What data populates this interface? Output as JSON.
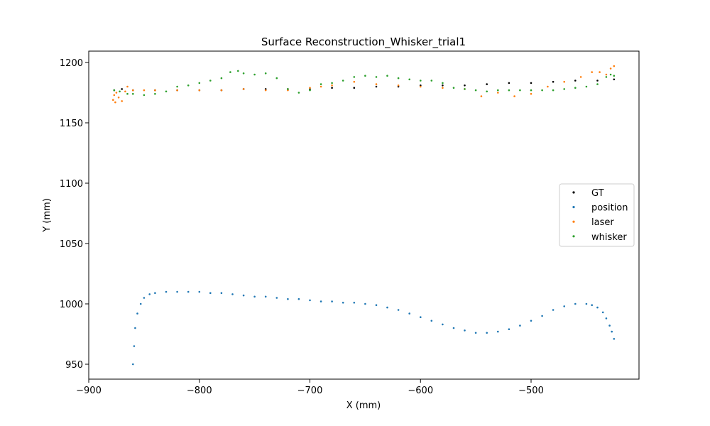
{
  "chart_data": {
    "type": "scatter",
    "title": "Surface Reconstruction_Whisker_trial1",
    "xlabel": "X (mm)",
    "ylabel": "Y (mm)",
    "xlim": [
      -900,
      -915
    ],
    "xlim_note": "",
    "x_range": [
      -903,
      -883
    ],
    "y_range": [
      937,
      1210
    ],
    "x_ticks": [
      -900,
      -800,
      -700,
      -600,
      -500
    ],
    "x_tick_labels": [
      "−900",
      "−800",
      "−700",
      "−600",
      "−500"
    ],
    "y_ticks": [
      950,
      1000,
      1050,
      1100,
      1150,
      1200
    ],
    "y_tick_labels": [
      "950",
      "1000",
      "1050",
      "1100",
      "1150",
      "1200"
    ],
    "grid": false,
    "legend_position": "center-right",
    "series": [
      {
        "name": "GT",
        "color": "#000000",
        "x": [
          -877,
          -870,
          -860,
          -840,
          -820,
          -800,
          -780,
          -760,
          -740,
          -720,
          -700,
          -680,
          -660,
          -640,
          -620,
          -600,
          -580,
          -560,
          -540,
          -520,
          -500,
          -480,
          -460,
          -440,
          -425
        ],
        "y": [
          1177,
          1178,
          1177,
          1177,
          1177,
          1177,
          1177,
          1178,
          1178,
          1178,
          1178,
          1179,
          1179,
          1180,
          1180,
          1181,
          1181,
          1181,
          1182,
          1183,
          1183,
          1184,
          1185,
          1185,
          1186
        ]
      },
      {
        "name": "position",
        "color": "#1f77b4",
        "x": [
          -860,
          -859,
          -858,
          -856,
          -853,
          -850,
          -845,
          -840,
          -830,
          -820,
          -810,
          -800,
          -790,
          -780,
          -770,
          -760,
          -750,
          -740,
          -730,
          -720,
          -710,
          -700,
          -690,
          -680,
          -670,
          -660,
          -650,
          -640,
          -630,
          -620,
          -610,
          -600,
          -590,
          -580,
          -570,
          -560,
          -550,
          -540,
          -530,
          -520,
          -510,
          -500,
          -490,
          -480,
          -470,
          -460,
          -450,
          -445,
          -440,
          -435,
          -432,
          -429,
          -427,
          -425
        ],
        "y": [
          950,
          965,
          980,
          992,
          1000,
          1005,
          1008,
          1009,
          1010,
          1010,
          1010,
          1010,
          1009,
          1009,
          1008,
          1007,
          1006,
          1006,
          1005,
          1004,
          1004,
          1003,
          1002,
          1002,
          1001,
          1001,
          1000,
          999,
          997,
          995,
          992,
          989,
          986,
          983,
          980,
          978,
          976,
          976,
          977,
          979,
          982,
          986,
          990,
          995,
          998,
          1000,
          1000,
          999,
          997,
          993,
          988,
          982,
          977,
          971
        ]
      },
      {
        "name": "laser",
        "color": "#ff7f0e",
        "x": [
          -878,
          -877,
          -876,
          -875,
          -873,
          -870,
          -867,
          -865,
          -860,
          -850,
          -840,
          -820,
          -800,
          -780,
          -760,
          -740,
          -720,
          -700,
          -690,
          -680,
          -660,
          -640,
          -620,
          -600,
          -580,
          -560,
          -545,
          -530,
          -515,
          -500,
          -485,
          -470,
          -455,
          -445,
          -438,
          -432,
          -428,
          -425
        ],
        "y": [
          1169,
          1173,
          1167,
          1175,
          1171,
          1168,
          1176,
          1180,
          1177,
          1177,
          1177,
          1177,
          1177,
          1177,
          1178,
          1177,
          1177,
          1179,
          1180,
          1181,
          1184,
          1182,
          1181,
          1180,
          1179,
          1178,
          1172,
          1175,
          1172,
          1174,
          1180,
          1184,
          1188,
          1192,
          1192,
          1190,
          1195,
          1197
        ]
      },
      {
        "name": "whisker",
        "color": "#2ca02c",
        "x": [
          -877,
          -872,
          -865,
          -860,
          -850,
          -840,
          -830,
          -820,
          -810,
          -800,
          -790,
          -780,
          -772,
          -765,
          -760,
          -750,
          -740,
          -730,
          -720,
          -710,
          -700,
          -690,
          -680,
          -670,
          -660,
          -650,
          -640,
          -630,
          -620,
          -610,
          -600,
          -590,
          -580,
          -570,
          -560,
          -550,
          -540,
          -530,
          -520,
          -510,
          -500,
          -490,
          -480,
          -470,
          -460,
          -450,
          -440,
          -432,
          -428,
          -425
        ],
        "y": [
          1177,
          1176,
          1174,
          1174,
          1173,
          1174,
          1176,
          1180,
          1181,
          1183,
          1185,
          1187,
          1192,
          1193,
          1191,
          1190,
          1191,
          1187,
          1178,
          1175,
          1177,
          1182,
          1183,
          1185,
          1188,
          1189,
          1188,
          1189,
          1187,
          1186,
          1185,
          1185,
          1183,
          1179,
          1178,
          1177,
          1176,
          1177,
          1177,
          1177,
          1177,
          1177,
          1177,
          1178,
          1179,
          1180,
          1182,
          1188,
          1190,
          1189
        ]
      }
    ]
  }
}
